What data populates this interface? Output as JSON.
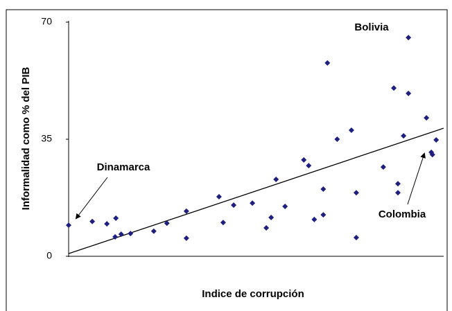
{
  "chart_data": {
    "type": "scatter",
    "x_label": "Indice de corrupción",
    "y_label": "Informalidad como % del PIB",
    "xlim": [
      0,
      100
    ],
    "ylim": [
      0,
      70
    ],
    "yticks": [
      0,
      35,
      70
    ],
    "color": "#1f1f80",
    "x": [
      0,
      6.3,
      10.2,
      12.6,
      12.4,
      14.0,
      16.5,
      22.7,
      26.2,
      31.4,
      31.4,
      40.1,
      41.2,
      44.0,
      49.0,
      52.7,
      54.0,
      55.3,
      57.7,
      62.7,
      64.0,
      65.5,
      67.9,
      67.9,
      69.0,
      71.6,
      75.4,
      76.7,
      76.7,
      83.9,
      86.7,
      87.8,
      87.8,
      89.3,
      90.6,
      90.6,
      95.4,
      96.7,
      97.0,
      98.0
    ],
    "values": [
      9.3,
      10.4,
      9.7,
      11.4,
      5.8,
      6.6,
      6.8,
      7.5,
      9.9,
      13.5,
      5.4,
      17.8,
      10.1,
      15.3,
      15.9,
      8.5,
      11.6,
      23.0,
      14.9,
      28.8,
      27.1,
      11.0,
      20.1,
      12.4,
      57.8,
      35.0,
      37.7,
      19.0,
      5.6,
      26.7,
      50.3,
      21.7,
      19.0,
      36.0,
      48.7,
      65.4,
      41.4,
      31.1,
      30.4,
      34.8
    ],
    "trend": {
      "x": [
        0,
        100
      ],
      "values": [
        0.8,
        38.3
      ]
    },
    "annotations": [
      "Bolivia",
      "Dinamarca",
      "Colombia"
    ]
  }
}
